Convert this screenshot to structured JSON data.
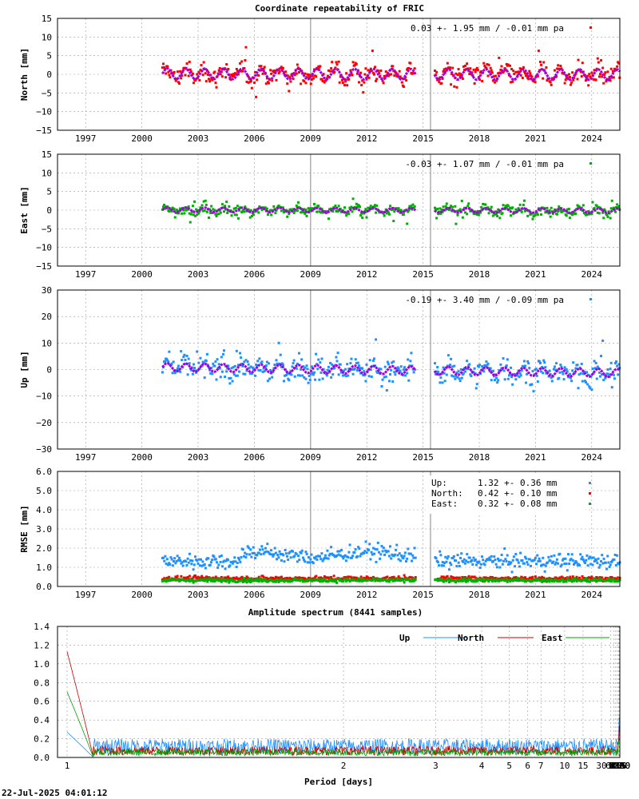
{
  "figure": {
    "title": "Coordinate repeatability of FRIC",
    "spectrum_title": "Amplitude spectrum (8441 samples)",
    "timestamp": "22-Jul-2025 04:01:12"
  },
  "chart_data": [
    {
      "type": "scatter",
      "id": "north",
      "ylabel": "North [mm]",
      "ylim": [
        -15,
        15
      ],
      "yticks": [
        -15,
        -10,
        -5,
        0,
        5,
        10,
        15
      ],
      "xlim": [
        1995.5,
        2025.5
      ],
      "xticks": [
        1997,
        2000,
        2003,
        2006,
        2009,
        2012,
        2015,
        2018,
        2021,
        2024
      ],
      "grid": true,
      "point_color": "#ff0000",
      "model_color": "#a000e0",
      "legend": "0.03 +- 1.95 mm / -0.01 mm pa",
      "data_start": 2001.1,
      "data_end": 2025.5,
      "gap": [
        2014.6,
        2015.6
      ],
      "vlines": [
        2009.0,
        2015.4
      ],
      "summary": {
        "mean": 0.03,
        "sigma": 1.95,
        "trend_per_year": -0.01,
        "annual_amplitude": 1.4
      }
    },
    {
      "type": "scatter",
      "id": "east",
      "ylabel": "East [mm]",
      "ylim": [
        -15,
        15
      ],
      "yticks": [
        -15,
        -10,
        -5,
        0,
        5,
        10,
        15
      ],
      "xlim": [
        1995.5,
        2025.5
      ],
      "xticks": [
        1997,
        2000,
        2003,
        2006,
        2009,
        2012,
        2015,
        2018,
        2021,
        2024
      ],
      "grid": true,
      "point_color": "#00b000",
      "model_color": "#a000e0",
      "legend": "-0.03 +- 1.07 mm / -0.01 mm pa",
      "data_start": 2001.1,
      "data_end": 2025.5,
      "gap": [
        2014.6,
        2015.6
      ],
      "vlines": [
        2009.0,
        2015.4
      ],
      "summary": {
        "mean": -0.03,
        "sigma": 1.07,
        "trend_per_year": -0.01,
        "annual_amplitude": 0.6
      }
    },
    {
      "type": "scatter",
      "id": "up",
      "ylabel": "Up [mm]",
      "ylim": [
        -30,
        30
      ],
      "yticks": [
        -30,
        -20,
        -10,
        0,
        10,
        20,
        30
      ],
      "xlim": [
        1995.5,
        2025.5
      ],
      "xticks": [
        1997,
        2000,
        2003,
        2006,
        2009,
        2012,
        2015,
        2018,
        2021,
        2024
      ],
      "grid": true,
      "point_color": "#1e90ff",
      "model_color": "#a000e0",
      "legend": "-0.19 +- 3.40 mm / -0.09 mm pa",
      "data_start": 2001.1,
      "data_end": 2025.5,
      "gap": [
        2014.6,
        2015.6
      ],
      "vlines": [
        2009.0,
        2015.4
      ],
      "summary": {
        "mean": -0.19,
        "sigma": 3.4,
        "trend_per_year": -0.09,
        "annual_amplitude": 1.5
      }
    },
    {
      "type": "scatter",
      "id": "rmse",
      "ylabel": "RMSE [mm]",
      "ylim": [
        0,
        6
      ],
      "yticks": [
        0.0,
        1.0,
        2.0,
        3.0,
        4.0,
        5.0,
        6.0
      ],
      "xlim": [
        1995.5,
        2025.5
      ],
      "xticks": [
        1997,
        2000,
        2003,
        2006,
        2009,
        2012,
        2015,
        2018,
        2021,
        2024
      ],
      "grid": true,
      "gap": [
        2014.6,
        2015.6
      ],
      "vlines": [
        2009.0,
        2015.4
      ],
      "series": [
        {
          "name": "Up:",
          "stats": "1.32 +- 0.36 mm",
          "color": "#1e90ff",
          "mean": 1.32,
          "sd": 0.36
        },
        {
          "name": "North:",
          "stats": "0.42 +- 0.10 mm",
          "color": "#ff0000",
          "mean": 0.42,
          "sd": 0.1
        },
        {
          "name": "East:",
          "stats": "0.32 +- 0.08 mm",
          "color": "#00b000",
          "mean": 0.32,
          "sd": 0.08
        }
      ]
    },
    {
      "type": "line",
      "id": "spectrum",
      "xlabel": "Period [days]",
      "x_scale": "reciprocal",
      "xlim": [
        1,
        8760
      ],
      "xticks": [
        1,
        2,
        3,
        4,
        5,
        6,
        7,
        10,
        15,
        30,
        61,
        91,
        122,
        183,
        365,
        730,
        2190,
        4380,
        8760
      ],
      "ylim": [
        0,
        1.4
      ],
      "yticks": [
        0.0,
        0.2,
        0.4,
        0.6,
        0.8,
        1.0,
        1.2,
        1.4
      ],
      "grid": true,
      "legend_position": "top-right",
      "series": [
        {
          "name": "Up",
          "color": "#1e90ff",
          "peaks": [
            [
              1,
              0.27
            ],
            [
              365,
              0.7
            ],
            [
              730,
              0.42
            ],
            [
              2190,
              0.6
            ],
            [
              4380,
              0.62
            ],
            [
              8760,
              0.38
            ]
          ]
        },
        {
          "name": "North",
          "color": "#cc0000",
          "peaks": [
            [
              1,
              1.13
            ],
            [
              365,
              1.13
            ],
            [
              730,
              0.3
            ],
            [
              2190,
              0.55
            ],
            [
              4380,
              0.45
            ],
            [
              8760,
              0.36
            ]
          ]
        },
        {
          "name": "East",
          "color": "#00a000",
          "peaks": [
            [
              1,
              0.7
            ],
            [
              365,
              0.55
            ],
            [
              730,
              0.2
            ],
            [
              2190,
              0.12
            ],
            [
              4380,
              0.03
            ],
            [
              8760,
              0.2
            ]
          ]
        }
      ]
    }
  ]
}
